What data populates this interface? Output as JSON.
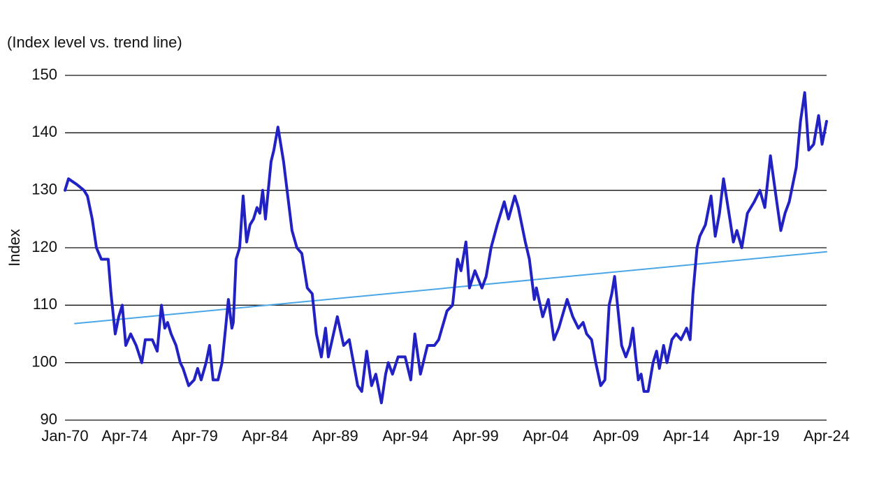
{
  "chart_data": {
    "type": "line",
    "subtitle": "(Index level vs. trend line)",
    "y_label": "Index",
    "ylim": [
      90,
      150
    ],
    "yticks": [
      90,
      100,
      110,
      120,
      130,
      140,
      150
    ],
    "grid": true,
    "xlim": [
      1970.0,
      2024.25
    ],
    "xticks": [
      {
        "value": 1970.0,
        "label": "Jan-70"
      },
      {
        "value": 1974.25,
        "label": "Apr-74"
      },
      {
        "value": 1979.25,
        "label": "Apr-79"
      },
      {
        "value": 1984.25,
        "label": "Apr-84"
      },
      {
        "value": 1989.25,
        "label": "Apr-89"
      },
      {
        "value": 1994.25,
        "label": "Apr-94"
      },
      {
        "value": 1999.25,
        "label": "Apr-99"
      },
      {
        "value": 2004.25,
        "label": "Apr-04"
      },
      {
        "value": 2009.25,
        "label": "Apr-09"
      },
      {
        "value": 2014.25,
        "label": "Apr-14"
      },
      {
        "value": 2019.25,
        "label": "Apr-19"
      },
      {
        "value": 2024.25,
        "label": "Apr-24"
      }
    ],
    "series": [
      {
        "color": "#4aa6e6",
        "width": 2,
        "x": [
          1970.7,
          2024.25
        ],
        "values": [
          106.8,
          119.3
        ]
      },
      {
        "color": "#2222c4",
        "width": 4,
        "x": [
          1970.0,
          1970.25,
          1970.85,
          1971.35,
          1971.6,
          1971.94,
          1972.24,
          1972.59,
          1973.08,
          1973.28,
          1973.58,
          1973.83,
          1974.08,
          1974.33,
          1974.68,
          1975.07,
          1975.47,
          1975.72,
          1976.22,
          1976.57,
          1976.87,
          1977.11,
          1977.31,
          1977.56,
          1977.91,
          1978.21,
          1978.41,
          1978.81,
          1979.2,
          1979.45,
          1979.7,
          1980.05,
          1980.3,
          1980.55,
          1980.9,
          1981.19,
          1981.44,
          1981.64,
          1981.89,
          1981.99,
          1982.19,
          1982.44,
          1982.69,
          1982.94,
          1983.18,
          1983.43,
          1983.68,
          1983.88,
          1984.08,
          1984.28,
          1984.48,
          1984.68,
          1984.88,
          1985.17,
          1985.37,
          1985.57,
          1985.87,
          1986.17,
          1986.52,
          1986.87,
          1987.26,
          1987.61,
          1987.91,
          1988.26,
          1988.56,
          1988.76,
          1989.4,
          1989.85,
          1990.25,
          1990.85,
          1991.14,
          1991.49,
          1991.84,
          1992.14,
          1992.54,
          1992.84,
          1993.03,
          1993.33,
          1993.73,
          1994.23,
          1994.63,
          1994.92,
          1995.32,
          1995.82,
          1996.32,
          1996.62,
          1997.21,
          1997.61,
          1997.96,
          1998.21,
          1998.56,
          1998.81,
          1999.2,
          1999.7,
          2000.0,
          2000.35,
          2000.79,
          2001.29,
          2001.59,
          2002.04,
          2002.29,
          2002.79,
          2003.08,
          2003.43,
          2003.58,
          2004.03,
          2004.43,
          2004.83,
          2005.17,
          2005.77,
          2006.17,
          2006.57,
          2006.91,
          2007.16,
          2007.51,
          2007.81,
          2008.16,
          2008.46,
          2008.76,
          2008.95,
          2009.15,
          2009.65,
          2009.95,
          2010.25,
          2010.45,
          2010.65,
          2010.84,
          2011.04,
          2011.24,
          2011.54,
          2011.89,
          2012.14,
          2012.34,
          2012.64,
          2012.88,
          2013.23,
          2013.53,
          2013.88,
          2014.28,
          2014.53,
          2014.73,
          2015.02,
          2015.22,
          2015.62,
          2016.02,
          2016.32,
          2016.62,
          2016.91,
          2017.36,
          2017.61,
          2017.86,
          2018.21,
          2018.61,
          2019.1,
          2019.5,
          2019.85,
          2020.25,
          2020.7,
          2020.99,
          2021.29,
          2021.59,
          2021.84,
          2022.09,
          2022.39,
          2022.69,
          2022.98,
          2023.33,
          2023.68,
          2023.93,
          2024.25
        ],
        "values": [
          130,
          132,
          131,
          130,
          129,
          125,
          120,
          118,
          118,
          112,
          105,
          108,
          110,
          103,
          105,
          103,
          100,
          104,
          104,
          102,
          110,
          106,
          107,
          105,
          103,
          100,
          99,
          96,
          97,
          99,
          97,
          100,
          103,
          97,
          97,
          100,
          106,
          111,
          106,
          107,
          118,
          120,
          129,
          121,
          124,
          125,
          127,
          126,
          130,
          125,
          130,
          135,
          137,
          141,
          138,
          135,
          129,
          123,
          120,
          119,
          113,
          112,
          105,
          101,
          106,
          101,
          108,
          103,
          104,
          96,
          95,
          102,
          96,
          98,
          93,
          98,
          100,
          98,
          101,
          101,
          97,
          105,
          98,
          103,
          103,
          104,
          109,
          110,
          118,
          116,
          121,
          113,
          116,
          113,
          115,
          120,
          124,
          128,
          125,
          129,
          127,
          121,
          118,
          111,
          113,
          108,
          111,
          104,
          106,
          111,
          108,
          106,
          107,
          105,
          104,
          100,
          96,
          97,
          110,
          112,
          115,
          103,
          101,
          103,
          106,
          101,
          97,
          98,
          95,
          95,
          100,
          102,
          99,
          103,
          100,
          104,
          105,
          104,
          106,
          104,
          112,
          120,
          122,
          124,
          129,
          122,
          126,
          132,
          125,
          121,
          123,
          120,
          126,
          128,
          130,
          127,
          136,
          128,
          123,
          126,
          128,
          131,
          134,
          142,
          147,
          137,
          138,
          143,
          138,
          142
        ]
      }
    ]
  }
}
